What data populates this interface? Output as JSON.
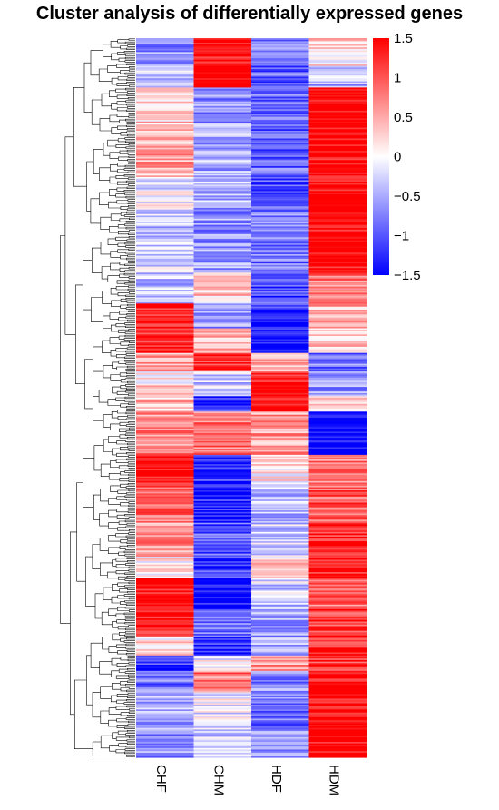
{
  "chart_data": {
    "type": "heatmap",
    "title": "Cluster analysis of differentially expressed genes",
    "columns": [
      "CHF",
      "CHM",
      "HDF",
      "HDM"
    ],
    "row_dendrogram": true,
    "rows_approx": 400,
    "color_scale": {
      "min": -1.5,
      "max": 1.5,
      "colors": [
        "#0000ff",
        "#ffffff",
        "#ff0000"
      ],
      "ticks": [
        1.5,
        1,
        0.5,
        0,
        -0.5,
        -1,
        -1.5
      ],
      "tick_labels": [
        "1.5",
        "1",
        "0.5",
        "0",
        "−0.5",
        "−1",
        "−1.5"
      ],
      "legend_position": "top-right"
    },
    "row_blocks": [
      {
        "rows": 18,
        "values": [
          -0.7,
          1.4,
          -0.8,
          0.2
        ]
      },
      {
        "rows": 14,
        "values": [
          -0.3,
          1.5,
          -0.9,
          -0.4
        ]
      },
      {
        "rows": 30,
        "values": [
          0.3,
          -0.6,
          -0.9,
          1.5
        ]
      },
      {
        "rows": 28,
        "values": [
          0.5,
          -0.5,
          -0.9,
          1.5
        ]
      },
      {
        "rows": 20,
        "values": [
          -0.1,
          -0.4,
          -1.0,
          1.5
        ]
      },
      {
        "rows": 42,
        "values": [
          -0.3,
          -0.6,
          -0.8,
          1.5
        ]
      },
      {
        "rows": 20,
        "values": [
          -0.4,
          0.3,
          -1.1,
          0.8
        ]
      },
      {
        "rows": 16,
        "values": [
          1.4,
          -0.6,
          -1.2,
          0.5
        ]
      },
      {
        "rows": 16,
        "values": [
          1.3,
          0.4,
          -1.4,
          0.4
        ]
      },
      {
        "rows": 12,
        "values": [
          0.5,
          1.2,
          0.4,
          -0.8
        ]
      },
      {
        "rows": 16,
        "values": [
          0.2,
          -0.3,
          1.3,
          -0.6
        ]
      },
      {
        "rows": 10,
        "values": [
          0.4,
          -1.2,
          1.4,
          0.1
        ]
      },
      {
        "rows": 28,
        "values": [
          0.7,
          0.8,
          0.6,
          -1.5
        ]
      },
      {
        "rows": 20,
        "values": [
          1.4,
          -1.2,
          0.1,
          0.8
        ]
      },
      {
        "rows": 24,
        "values": [
          0.9,
          -1.3,
          -0.4,
          1.0
        ]
      },
      {
        "rows": 22,
        "values": [
          0.6,
          -1.0,
          -0.3,
          1.3
        ]
      },
      {
        "rows": 14,
        "values": [
          0.1,
          -1.1,
          0.2,
          1.4
        ]
      },
      {
        "rows": 20,
        "values": [
          1.4,
          -1.4,
          -0.3,
          0.9
        ]
      },
      {
        "rows": 18,
        "values": [
          1.3,
          -0.8,
          -0.6,
          1.2
        ]
      },
      {
        "rows": 12,
        "values": [
          0.2,
          -1.2,
          -0.5,
          1.3
        ]
      },
      {
        "rows": 10,
        "values": [
          -1.2,
          -0.1,
          0.6,
          1.2
        ]
      },
      {
        "rows": 14,
        "values": [
          -0.8,
          0.8,
          -0.7,
          1.5
        ]
      },
      {
        "rows": 22,
        "values": [
          -0.5,
          -0.1,
          -0.8,
          1.5
        ]
      },
      {
        "rows": 20,
        "values": [
          -0.6,
          -0.3,
          -0.7,
          1.5
        ]
      }
    ],
    "xlabel": "",
    "ylabel": ""
  }
}
